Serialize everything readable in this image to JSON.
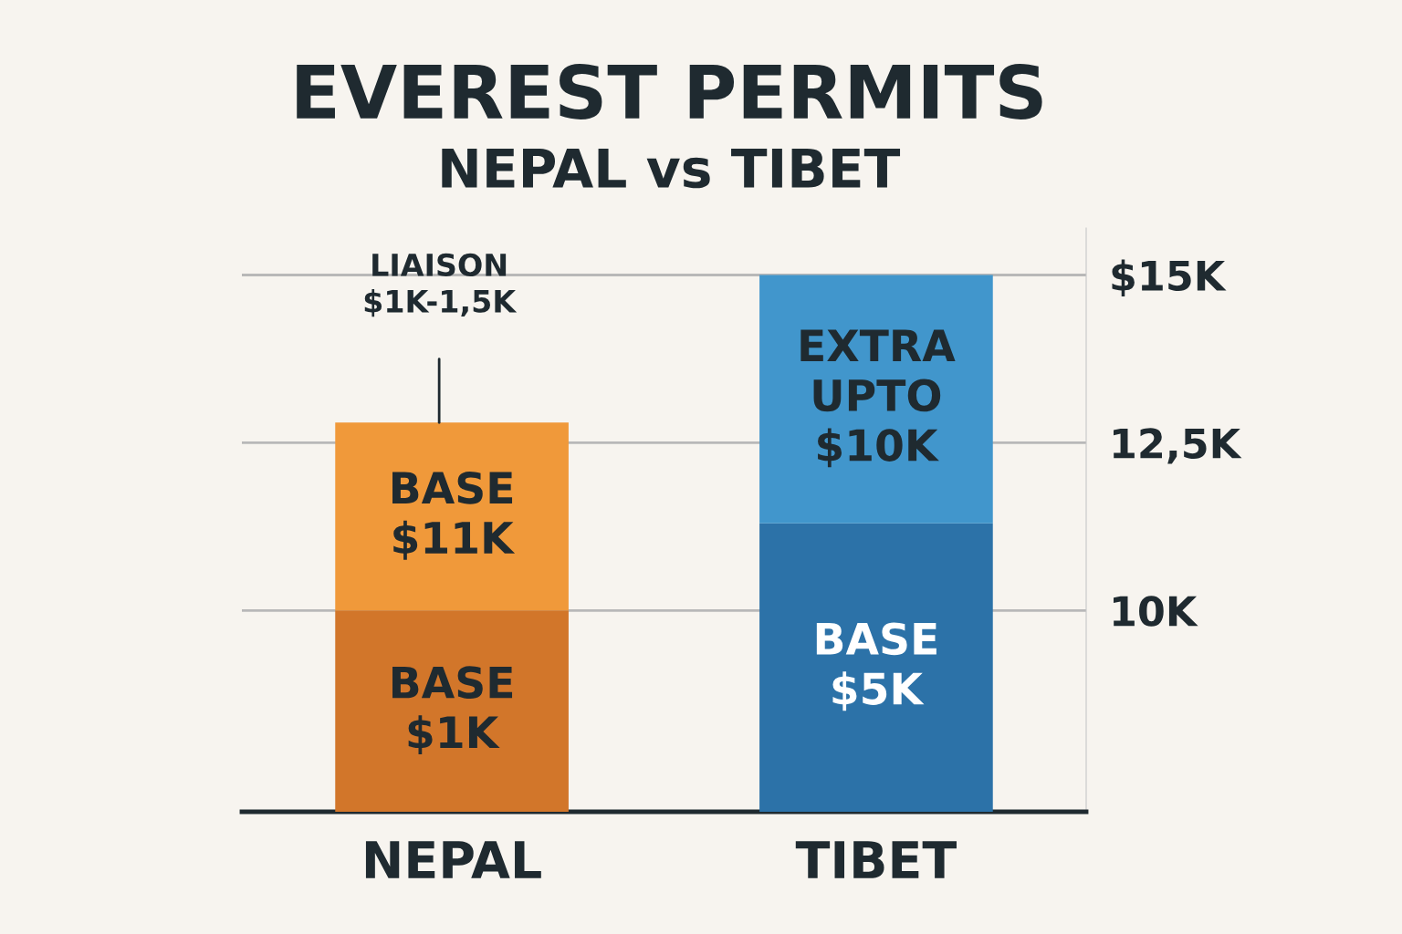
{
  "chart_data": {
    "type": "bar",
    "title": "EVEREST PERMITS",
    "subtitle": "NEPAL vs TIBET",
    "categories": [
      "NEPAL",
      "TIBET"
    ],
    "series": [
      {
        "colors": [
          "#d2762a",
          "#2c72a8"
        ],
        "base": [
          7,
          7
        ],
        "values": [
          3,
          4.3
        ]
      },
      {
        "colors": [
          "#f0993a",
          "#4196cc"
        ],
        "base": [
          10,
          11.3
        ],
        "values": [
          2.8,
          3.7
        ]
      }
    ],
    "ylim": [
      7,
      15.7
    ],
    "yticks": [
      {
        "value": 10,
        "label": "10K"
      },
      {
        "value": 12.5,
        "label": "12,5K"
      },
      {
        "value": 15,
        "label": "$15K"
      }
    ],
    "grid": "y",
    "annotations": [
      "LIAISON\n$1K-1,5K",
      "BASE\n$11K",
      "BASE\n$1K",
      "EXTRA\nUPTO\n$10K",
      "BASE\n$5K"
    ]
  }
}
